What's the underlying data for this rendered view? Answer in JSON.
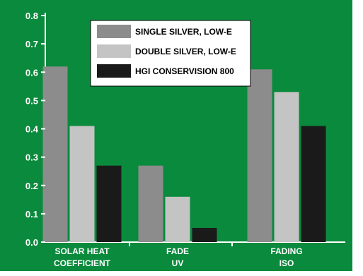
{
  "chart_data": {
    "type": "bar",
    "title": "",
    "xlabel": "",
    "ylabel": "",
    "ylim": [
      0,
      0.8
    ],
    "yticks": [
      "0.0",
      "0.1",
      "0.2",
      "0.3",
      "0.4",
      "0.5",
      "0.6",
      "0.7",
      "0.8"
    ],
    "categories": [
      [
        "SOLAR HEAT",
        "COEFFICIENT"
      ],
      [
        "FADE",
        "UV"
      ],
      [
        "FADING",
        "ISO"
      ]
    ],
    "series": [
      {
        "name": "SINGLE SILVER, LOW-E",
        "color": "#8c8c8c",
        "values": [
          0.62,
          0.27,
          0.61
        ]
      },
      {
        "name": "DOUBLE SILVER, LOW-E",
        "color": "#c4c4c4",
        "values": [
          0.41,
          0.16,
          0.53
        ]
      },
      {
        "name": "HGI CONSERVISION 800",
        "color": "#1a1a1a",
        "values": [
          0.27,
          0.05,
          0.41
        ]
      }
    ],
    "legend_position": "top-center",
    "grid": false,
    "colors": {
      "background": "#0a8a3c",
      "legend_background": "#ffffff",
      "axis": "#ffffff"
    }
  }
}
